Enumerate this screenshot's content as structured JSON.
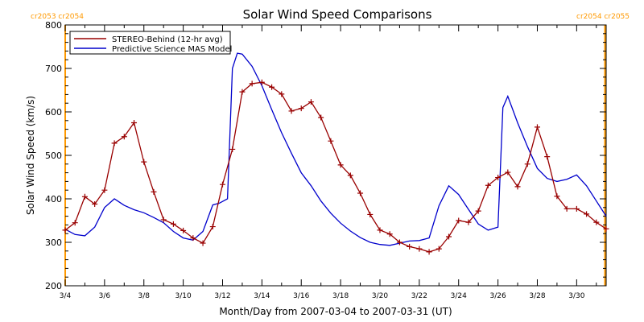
{
  "chart_data": {
    "type": "line",
    "title": "Solar Wind Speed Comparisons",
    "xlabel": "Month/Day from 2007-03-04 to 2007-03-31 (UT)",
    "ylabel": "Solar Wind Speed (km/s)",
    "xlim": [
      "2007-03-04",
      "2007-03-31T12:00"
    ],
    "ylim": [
      200,
      800
    ],
    "yticks": [
      200,
      300,
      400,
      500,
      600,
      700,
      800
    ],
    "xtick_dates": [
      "2007-03-04",
      "2007-03-06",
      "2007-03-08",
      "2007-03-10",
      "2007-03-12",
      "2007-03-14",
      "2007-03-16",
      "2007-03-18",
      "2007-03-20",
      "2007-03-22",
      "2007-03-24",
      "2007-03-26",
      "2007-03-28",
      "2007-03-30"
    ],
    "xtick_labels": [
      "3/4",
      "3/6",
      "3/8",
      "3/10",
      "3/12",
      "3/14",
      "3/16",
      "3/18",
      "3/20",
      "3/22",
      "3/24",
      "3/26",
      "3/28",
      "3/30"
    ],
    "grid": false,
    "legend_position": "top-left",
    "rotation_markers": {
      "left_date": "2007-03-04",
      "left_labels": "cr2053 cr2054",
      "right_date": "2007-03-31T10:30",
      "right_labels": "cr2054 cr2055",
      "color": "#ff9900"
    },
    "series": [
      {
        "name": "STEREO-Behind (12-hr avg)",
        "color": "#990000",
        "marker": "plus",
        "x": [
          "2007-03-04T00:00",
          "2007-03-04T12:00",
          "2007-03-05T00:00",
          "2007-03-05T12:00",
          "2007-03-06T00:00",
          "2007-03-06T12:00",
          "2007-03-07T00:00",
          "2007-03-07T12:00",
          "2007-03-08T00:00",
          "2007-03-08T12:00",
          "2007-03-09T00:00",
          "2007-03-09T12:00",
          "2007-03-10T00:00",
          "2007-03-10T12:00",
          "2007-03-11T00:00",
          "2007-03-11T12:00",
          "2007-03-12T00:00",
          "2007-03-12T12:00",
          "2007-03-13T00:00",
          "2007-03-13T12:00",
          "2007-03-14T00:00",
          "2007-03-14T12:00",
          "2007-03-15T00:00",
          "2007-03-15T12:00",
          "2007-03-16T00:00",
          "2007-03-16T12:00",
          "2007-03-17T00:00",
          "2007-03-17T12:00",
          "2007-03-18T00:00",
          "2007-03-18T12:00",
          "2007-03-19T00:00",
          "2007-03-19T12:00",
          "2007-03-20T00:00",
          "2007-03-20T12:00",
          "2007-03-21T00:00",
          "2007-03-21T12:00",
          "2007-03-22T00:00",
          "2007-03-22T12:00",
          "2007-03-23T00:00",
          "2007-03-23T12:00",
          "2007-03-24T00:00",
          "2007-03-24T12:00",
          "2007-03-25T00:00",
          "2007-03-25T12:00",
          "2007-03-26T00:00",
          "2007-03-26T12:00",
          "2007-03-27T00:00",
          "2007-03-27T12:00",
          "2007-03-28T00:00",
          "2007-03-28T12:00",
          "2007-03-29T00:00",
          "2007-03-29T12:00",
          "2007-03-30T00:00",
          "2007-03-30T12:00",
          "2007-03-31T00:00",
          "2007-03-31T12:00"
        ],
        "y": [
          328,
          345,
          405,
          388,
          420,
          528,
          543,
          575,
          485,
          416,
          352,
          342,
          327,
          310,
          298,
          336,
          433,
          514,
          646,
          665,
          668,
          657,
          641,
          602,
          608,
          623,
          587,
          533,
          478,
          454,
          413,
          364,
          328,
          319,
          300,
          290,
          285,
          278,
          285,
          313,
          350,
          346,
          372,
          431,
          449,
          461,
          428,
          480,
          565,
          497,
          406,
          377,
          377,
          365,
          346,
          331
        ]
      },
      {
        "name": "Predictive Science MAS Model",
        "color": "#0000cc",
        "x": [
          "2007-03-04T00:00",
          "2007-03-04T12:00",
          "2007-03-05T00:00",
          "2007-03-05T12:00",
          "2007-03-06T00:00",
          "2007-03-06T12:00",
          "2007-03-07T00:00",
          "2007-03-07T12:00",
          "2007-03-08T00:00",
          "2007-03-08T12:00",
          "2007-03-09T00:00",
          "2007-03-09T12:00",
          "2007-03-10T00:00",
          "2007-03-10T12:00",
          "2007-03-11T00:00",
          "2007-03-11T12:00",
          "2007-03-11T20:00",
          "2007-03-12T06:00",
          "2007-03-12T12:00",
          "2007-03-12T18:00",
          "2007-03-13T00:00",
          "2007-03-13T12:00",
          "2007-03-14T00:00",
          "2007-03-14T12:00",
          "2007-03-15T00:00",
          "2007-03-15T12:00",
          "2007-03-16T00:00",
          "2007-03-16T12:00",
          "2007-03-17T00:00",
          "2007-03-17T12:00",
          "2007-03-18T00:00",
          "2007-03-18T12:00",
          "2007-03-19T00:00",
          "2007-03-19T12:00",
          "2007-03-20T00:00",
          "2007-03-20T12:00",
          "2007-03-21T00:00",
          "2007-03-21T12:00",
          "2007-03-22T00:00",
          "2007-03-22T12:00",
          "2007-03-23T00:00",
          "2007-03-23T12:00",
          "2007-03-24T00:00",
          "2007-03-24T12:00",
          "2007-03-25T00:00",
          "2007-03-25T12:00",
          "2007-03-26T00:00",
          "2007-03-26T06:00",
          "2007-03-26T12:00",
          "2007-03-27T00:00",
          "2007-03-27T12:00",
          "2007-03-28T00:00",
          "2007-03-28T12:00",
          "2007-03-29T00:00",
          "2007-03-29T12:00",
          "2007-03-30T00:00",
          "2007-03-30T12:00",
          "2007-03-31T00:00",
          "2007-03-31T12:00"
        ],
        "y": [
          330,
          318,
          315,
          335,
          380,
          400,
          385,
          375,
          368,
          357,
          345,
          325,
          310,
          305,
          325,
          386,
          390,
          400,
          700,
          735,
          733,
          705,
          660,
          605,
          552,
          505,
          460,
          430,
          395,
          367,
          344,
          326,
          311,
          300,
          295,
          293,
          298,
          303,
          304,
          310,
          384,
          430,
          410,
          376,
          342,
          328,
          335,
          610,
          636,
          575,
          520,
          470,
          447,
          440,
          445,
          455,
          430,
          395,
          360
        ]
      }
    ]
  }
}
